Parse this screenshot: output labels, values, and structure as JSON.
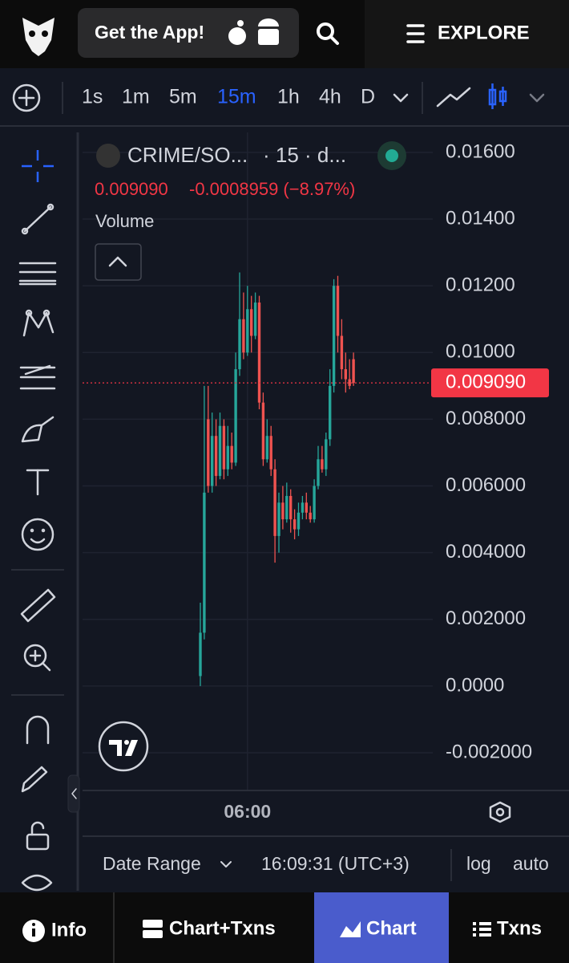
{
  "top_bar": {
    "app_button": "Get the App!",
    "explore": "EXPLORE"
  },
  "toolbar": {
    "intervals": [
      "1s",
      "1m",
      "5m",
      "15m",
      "1h",
      "4h",
      "D"
    ],
    "active_interval_index": 3
  },
  "chart_data": {
    "type": "candlestick",
    "symbol": "CRIME/SO...",
    "interval_info": "· 15 · d...",
    "last_price_text": "0.009090",
    "change_text": "-0.0008959 (−8.97%)",
    "indicator": "Volume",
    "last_price": 0.00909,
    "up_color": "#26a69a",
    "down_color": "#ef5350",
    "ylim": [
      -0.00313,
      0.0166
    ],
    "yticks": [
      {
        "value": 0.016,
        "label": "0.01600"
      },
      {
        "value": 0.014,
        "label": "0.01400"
      },
      {
        "value": 0.012,
        "label": "0.01200"
      },
      {
        "value": 0.01,
        "label": "0.01000"
      },
      {
        "value": 0.008,
        "label": "0.008000"
      },
      {
        "value": 0.006,
        "label": "0.006000"
      },
      {
        "value": 0.004,
        "label": "0.004000"
      },
      {
        "value": 0.002,
        "label": "0.002000"
      },
      {
        "value": 0,
        "label": "0.0000"
      },
      {
        "value": -0.002,
        "label": "-0.002000"
      }
    ],
    "xtick_label": "06:00",
    "candles": [
      {
        "open": 0.0003,
        "high": 0.0025,
        "low": 0.0,
        "close": 0.0016
      },
      {
        "open": 0.0016,
        "high": 0.009,
        "low": 0.0014,
        "close": 0.0058
      },
      {
        "open": 0.008,
        "high": 0.009,
        "low": 0.0058,
        "close": 0.006
      },
      {
        "open": 0.006,
        "high": 0.0082,
        "low": 0.0058,
        "close": 0.0075
      },
      {
        "open": 0.0075,
        "high": 0.008,
        "low": 0.006,
        "close": 0.0063
      },
      {
        "open": 0.0063,
        "high": 0.0082,
        "low": 0.0062,
        "close": 0.0078
      },
      {
        "open": 0.0078,
        "high": 0.008,
        "low": 0.0062,
        "close": 0.0065
      },
      {
        "open": 0.0065,
        "high": 0.0078,
        "low": 0.0063,
        "close": 0.0072
      },
      {
        "open": 0.0072,
        "high": 0.0076,
        "low": 0.0065,
        "close": 0.0067
      },
      {
        "open": 0.0067,
        "high": 0.01,
        "low": 0.0066,
        "close": 0.0095
      },
      {
        "open": 0.0095,
        "high": 0.0124,
        "low": 0.0093,
        "close": 0.011
      },
      {
        "open": 0.011,
        "high": 0.0118,
        "low": 0.0098,
        "close": 0.01
      },
      {
        "open": 0.01,
        "high": 0.012,
        "low": 0.0099,
        "close": 0.0113
      },
      {
        "open": 0.0113,
        "high": 0.0117,
        "low": 0.01,
        "close": 0.0105
      },
      {
        "open": 0.0105,
        "high": 0.0118,
        "low": 0.0104,
        "close": 0.0115
      },
      {
        "open": 0.0115,
        "high": 0.0117,
        "low": 0.0083,
        "close": 0.0085
      },
      {
        "open": 0.0085,
        "high": 0.0088,
        "low": 0.0066,
        "close": 0.0068
      },
      {
        "open": 0.0068,
        "high": 0.008,
        "low": 0.0067,
        "close": 0.0075
      },
      {
        "open": 0.0075,
        "high": 0.0078,
        "low": 0.0063,
        "close": 0.0065
      },
      {
        "open": 0.0065,
        "high": 0.0068,
        "low": 0.0037,
        "close": 0.0045
      },
      {
        "open": 0.0045,
        "high": 0.0058,
        "low": 0.004,
        "close": 0.0055
      },
      {
        "open": 0.0055,
        "high": 0.006,
        "low": 0.0047,
        "close": 0.005
      },
      {
        "open": 0.005,
        "high": 0.0061,
        "low": 0.0049,
        "close": 0.0057
      },
      {
        "open": 0.0057,
        "high": 0.0059,
        "low": 0.0046,
        "close": 0.005
      },
      {
        "open": 0.005,
        "high": 0.0053,
        "low": 0.0044,
        "close": 0.0047
      },
      {
        "open": 0.0047,
        "high": 0.0055,
        "low": 0.0045,
        "close": 0.0052
      },
      {
        "open": 0.0052,
        "high": 0.0057,
        "low": 0.005,
        "close": 0.0055
      },
      {
        "open": 0.0055,
        "high": 0.0058,
        "low": 0.005,
        "close": 0.0052
      },
      {
        "open": 0.0052,
        "high": 0.0054,
        "low": 0.0049,
        "close": 0.005
      },
      {
        "open": 0.005,
        "high": 0.0062,
        "low": 0.0049,
        "close": 0.006
      },
      {
        "open": 0.006,
        "high": 0.0072,
        "low": 0.0059,
        "close": 0.0068
      },
      {
        "open": 0.0068,
        "high": 0.0072,
        "low": 0.0064,
        "close": 0.0065
      },
      {
        "open": 0.0065,
        "high": 0.0076,
        "low": 0.0063,
        "close": 0.0074
      },
      {
        "open": 0.0074,
        "high": 0.0095,
        "low": 0.0072,
        "close": 0.009
      },
      {
        "open": 0.009,
        "high": 0.0122,
        "low": 0.0088,
        "close": 0.012
      },
      {
        "open": 0.012,
        "high": 0.0123,
        "low": 0.01,
        "close": 0.0105
      },
      {
        "open": 0.0105,
        "high": 0.011,
        "low": 0.0092,
        "close": 0.0095
      },
      {
        "open": 0.0095,
        "high": 0.01,
        "low": 0.0088,
        "close": 0.0092
      },
      {
        "open": 0.0092,
        "high": 0.0098,
        "low": 0.0089,
        "close": 0.009
      },
      {
        "open": 0.0098,
        "high": 0.01,
        "low": 0.009,
        "close": 0.00909
      }
    ]
  },
  "footer": {
    "date_range": "Date Range",
    "time": "16:09:31 (UTC+3)",
    "log": "log",
    "auto": "auto"
  },
  "bottom_nav": [
    "Info",
    "Chart+Txns",
    "Chart",
    "Txns"
  ]
}
